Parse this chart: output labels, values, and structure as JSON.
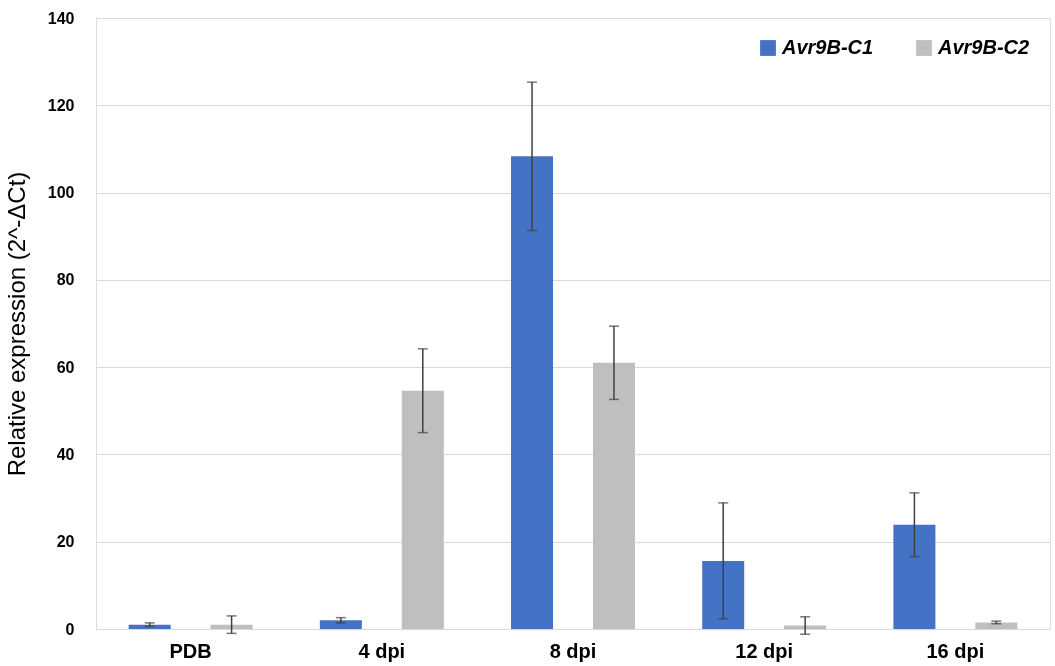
{
  "chart_data": {
    "type": "bar",
    "ylabel": "Relative expression (2^-ΔCt)",
    "categories": [
      "PDB",
      "4 dpi",
      "8 dpi",
      "12 dpi",
      "16 dpi"
    ],
    "series": [
      {
        "name": "Avr9B-C1",
        "color": "#4472c4",
        "values": [
          1,
          2,
          108.3,
          15.6,
          23.9
        ],
        "errors": [
          0.4,
          0.6,
          17,
          13.3,
          7.3
        ]
      },
      {
        "name": "Avr9B-C2",
        "color": "#bfbfbf",
        "values": [
          1,
          54.6,
          61,
          0.8,
          1.5
        ],
        "errors": [
          2,
          9.6,
          8.4,
          2,
          0.3
        ]
      }
    ],
    "ylim": [
      0,
      140
    ],
    "yticks": [
      0,
      20,
      40,
      60,
      80,
      100,
      120,
      140
    ],
    "grid": "y",
    "legend": "top right"
  }
}
